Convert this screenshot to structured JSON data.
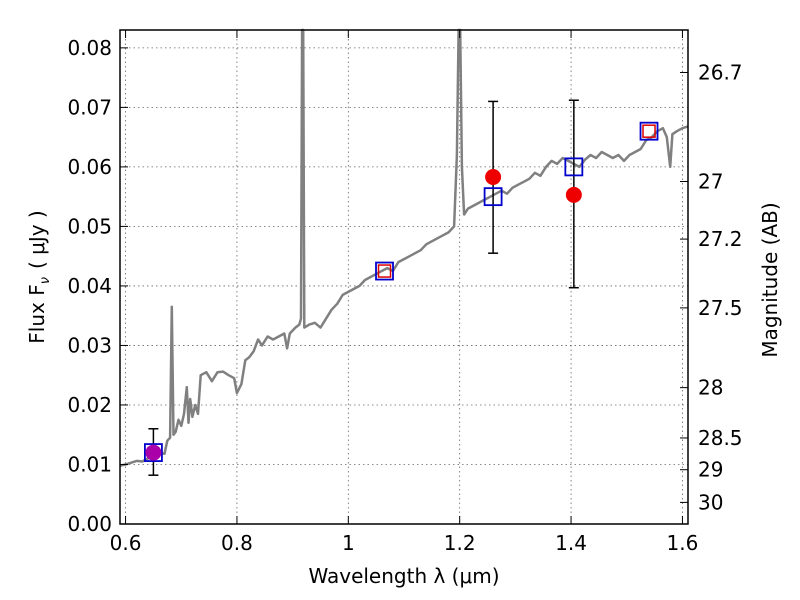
{
  "chart_data": {
    "type": "line",
    "title": "",
    "xlabel": "Wavelength  λ (μm)",
    "ylabel": "Flux  F",
    "ylabel_sub": "ν",
    "ylabel_unit": "( μJy )",
    "y2label": "Magnitude (AB)",
    "xlim": [
      0.59,
      1.61
    ],
    "ylim": [
      0.0,
      0.083
    ],
    "grid": true,
    "x_ticks": [
      {
        "value": 0.6,
        "label": "0.6"
      },
      {
        "value": 0.8,
        "label": "0.8"
      },
      {
        "value": 1.0,
        "label": "1"
      },
      {
        "value": 1.2,
        "label": "1.2"
      },
      {
        "value": 1.4,
        "label": "1.4"
      },
      {
        "value": 1.6,
        "label": "1.6"
      }
    ],
    "y_ticks": [
      {
        "value": 0.0,
        "label": "0.00"
      },
      {
        "value": 0.01,
        "label": "0.01"
      },
      {
        "value": 0.02,
        "label": "0.02"
      },
      {
        "value": 0.03,
        "label": "0.03"
      },
      {
        "value": 0.04,
        "label": "0.04"
      },
      {
        "value": 0.05,
        "label": "0.05"
      },
      {
        "value": 0.06,
        "label": "0.06"
      },
      {
        "value": 0.07,
        "label": "0.07"
      },
      {
        "value": 0.08,
        "label": "0.08"
      }
    ],
    "y2_ticks": [
      {
        "mag": 26.7,
        "label": "26.7"
      },
      {
        "mag": 27.0,
        "label": "27"
      },
      {
        "mag": 27.2,
        "label": "27.2"
      },
      {
        "mag": 27.5,
        "label": "27.5"
      },
      {
        "mag": 28.0,
        "label": "28"
      },
      {
        "mag": 28.5,
        "label": "28.5"
      },
      {
        "mag": 29.0,
        "label": "29"
      },
      {
        "mag": 30.0,
        "label": "30"
      }
    ],
    "spectrum": {
      "color": "#808080",
      "points": [
        [
          0.59,
          0.0098
        ],
        [
          0.6,
          0.01
        ],
        [
          0.61,
          0.0103
        ],
        [
          0.62,
          0.0106
        ],
        [
          0.63,
          0.0105
        ],
        [
          0.64,
          0.011
        ],
        [
          0.65,
          0.0115
        ],
        [
          0.66,
          0.012
        ],
        [
          0.67,
          0.0118
        ],
        [
          0.675,
          0.014
        ],
        [
          0.68,
          0.0145
        ],
        [
          0.683,
          0.0365
        ],
        [
          0.686,
          0.015
        ],
        [
          0.69,
          0.0155
        ],
        [
          0.695,
          0.0175
        ],
        [
          0.7,
          0.0165
        ],
        [
          0.705,
          0.0185
        ],
        [
          0.71,
          0.023
        ],
        [
          0.713,
          0.017
        ],
        [
          0.716,
          0.021
        ],
        [
          0.72,
          0.018
        ],
        [
          0.725,
          0.02
        ],
        [
          0.73,
          0.0185
        ],
        [
          0.735,
          0.025
        ],
        [
          0.745,
          0.0255
        ],
        [
          0.755,
          0.024
        ],
        [
          0.765,
          0.0255
        ],
        [
          0.775,
          0.0256
        ],
        [
          0.785,
          0.025
        ],
        [
          0.795,
          0.0245
        ],
        [
          0.8,
          0.022
        ],
        [
          0.808,
          0.0235
        ],
        [
          0.815,
          0.0275
        ],
        [
          0.822,
          0.028
        ],
        [
          0.83,
          0.029
        ],
        [
          0.838,
          0.031
        ],
        [
          0.845,
          0.03
        ],
        [
          0.855,
          0.0315
        ],
        [
          0.865,
          0.031
        ],
        [
          0.875,
          0.0315
        ],
        [
          0.885,
          0.032
        ],
        [
          0.89,
          0.0295
        ],
        [
          0.895,
          0.032
        ],
        [
          0.905,
          0.033
        ],
        [
          0.912,
          0.0335
        ],
        [
          0.915,
          0.0345
        ],
        [
          0.917,
          0.083
        ],
        [
          0.919,
          0.083
        ],
        [
          0.921,
          0.033
        ],
        [
          0.93,
          0.0335
        ],
        [
          0.94,
          0.0338
        ],
        [
          0.95,
          0.033
        ],
        [
          0.96,
          0.0345
        ],
        [
          0.97,
          0.036
        ],
        [
          0.98,
          0.037
        ],
        [
          0.99,
          0.0385
        ],
        [
          1.0,
          0.039
        ],
        [
          1.01,
          0.0395
        ],
        [
          1.02,
          0.04
        ],
        [
          1.03,
          0.041
        ],
        [
          1.04,
          0.0415
        ],
        [
          1.05,
          0.042
        ],
        [
          1.06,
          0.0425
        ],
        [
          1.07,
          0.043
        ],
        [
          1.08,
          0.0425
        ],
        [
          1.09,
          0.044
        ],
        [
          1.1,
          0.0445
        ],
        [
          1.11,
          0.045
        ],
        [
          1.12,
          0.0455
        ],
        [
          1.13,
          0.046
        ],
        [
          1.14,
          0.047
        ],
        [
          1.15,
          0.0475
        ],
        [
          1.16,
          0.048
        ],
        [
          1.17,
          0.0485
        ],
        [
          1.18,
          0.049
        ],
        [
          1.19,
          0.05
        ],
        [
          1.195,
          0.062
        ],
        [
          1.198,
          0.083
        ],
        [
          1.201,
          0.083
        ],
        [
          1.204,
          0.06
        ],
        [
          1.208,
          0.052
        ],
        [
          1.215,
          0.053
        ],
        [
          1.225,
          0.0535
        ],
        [
          1.235,
          0.054
        ],
        [
          1.245,
          0.0545
        ],
        [
          1.255,
          0.055
        ],
        [
          1.265,
          0.0555
        ],
        [
          1.275,
          0.056
        ],
        [
          1.285,
          0.0555
        ],
        [
          1.295,
          0.0565
        ],
        [
          1.305,
          0.057
        ],
        [
          1.315,
          0.0575
        ],
        [
          1.325,
          0.058
        ],
        [
          1.335,
          0.059
        ],
        [
          1.345,
          0.0585
        ],
        [
          1.355,
          0.06
        ],
        [
          1.365,
          0.061
        ],
        [
          1.375,
          0.0605
        ],
        [
          1.385,
          0.0615
        ],
        [
          1.395,
          0.061
        ],
        [
          1.405,
          0.0605
        ],
        [
          1.415,
          0.06
        ],
        [
          1.425,
          0.0612
        ],
        [
          1.435,
          0.062
        ],
        [
          1.445,
          0.0615
        ],
        [
          1.455,
          0.0625
        ],
        [
          1.465,
          0.062
        ],
        [
          1.475,
          0.0615
        ],
        [
          1.485,
          0.062
        ],
        [
          1.495,
          0.061
        ],
        [
          1.505,
          0.062
        ],
        [
          1.515,
          0.0625
        ],
        [
          1.525,
          0.063
        ],
        [
          1.535,
          0.0645
        ],
        [
          1.545,
          0.065
        ],
        [
          1.555,
          0.066
        ],
        [
          1.565,
          0.0665
        ],
        [
          1.572,
          0.065
        ],
        [
          1.578,
          0.06
        ],
        [
          1.582,
          0.0655
        ],
        [
          1.59,
          0.066
        ],
        [
          1.6,
          0.0665
        ],
        [
          1.61,
          0.0668
        ]
      ]
    },
    "model_points": {
      "marker": "square",
      "color": "#0000cc",
      "points": [
        [
          0.65,
          0.012
        ],
        [
          1.065,
          0.0425
        ],
        [
          1.26,
          0.055
        ],
        [
          1.405,
          0.06
        ],
        [
          1.54,
          0.066
        ]
      ]
    },
    "inner_points": {
      "marker": "square",
      "color": "#dd0000",
      "points": [
        [
          1.065,
          0.0425
        ],
        [
          1.54,
          0.066
        ]
      ]
    },
    "observed_points": [
      {
        "x": 0.65,
        "y": 0.012,
        "err_low": 0.0082,
        "err_high": 0.016,
        "color": "#aa00aa"
      },
      {
        "x": 1.26,
        "y": 0.0583,
        "err_low": 0.0455,
        "err_high": 0.071,
        "color": "#ee0000"
      },
      {
        "x": 1.405,
        "y": 0.0553,
        "err_low": 0.0397,
        "err_high": 0.0712,
        "color": "#ee0000"
      }
    ]
  }
}
